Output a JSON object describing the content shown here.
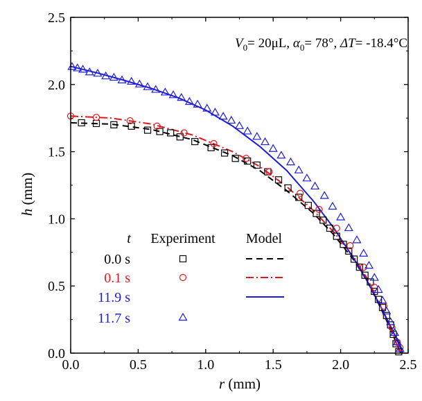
{
  "chart_data": {
    "type": "scatter",
    "title": "",
    "annotation": {
      "V0": "V",
      "V0_sub": "0",
      "V0_value": "= 20μL, ",
      "alpha": "α",
      "alpha_sub": "0",
      "alpha_value": "= 78°, ",
      "dT": "ΔT",
      "dT_value": "= -18.4°C"
    },
    "xlabel": {
      "var": "r",
      "unit": " (mm)"
    },
    "ylabel": {
      "var": "h",
      "unit": "  (mm)"
    },
    "xlim": [
      0,
      2.5
    ],
    "ylim": [
      0,
      2.5
    ],
    "xticks": [
      "0.0",
      "0.5",
      "1.0",
      "1.5",
      "2.0",
      "2.5"
    ],
    "yticks": [
      "0.0",
      "0.5",
      "1.0",
      "1.5",
      "2.0",
      "2.5"
    ],
    "grid": false,
    "legend": {
      "placement": "lower-left",
      "col_t": "t",
      "col_experiment": "Experiment",
      "col_model": "Model",
      "rows": [
        {
          "t": "0.0 s",
          "color": "#000000",
          "marker": "square",
          "line": "dash"
        },
        {
          "t": "0.1 s",
          "color": "#e8141b",
          "marker": "circle",
          "line": "dashdot"
        },
        {
          "t": "11.9 s",
          "color": "#1c1cd9",
          "marker": "none",
          "line": "solid"
        },
        {
          "t": "11.7 s",
          "color": "#1c1cd9",
          "marker": "triangle",
          "line": "none"
        }
      ]
    },
    "experiment_series": [
      {
        "t": "0.0 s",
        "color": "#000000",
        "marker": "square",
        "x": [
          0.08,
          0.19,
          0.32,
          0.45,
          0.57,
          0.66,
          0.74,
          0.81,
          0.92,
          1.04,
          1.14,
          1.22,
          1.31,
          1.38,
          1.46,
          1.54,
          1.61,
          1.69,
          1.76,
          1.82,
          1.87,
          1.92,
          1.97,
          2.02,
          2.06,
          2.1,
          2.14,
          2.18,
          2.22,
          2.25,
          2.28,
          2.31,
          2.34,
          2.37,
          2.39,
          2.41,
          2.43
        ],
        "y": [
          1.715,
          1.71,
          1.7,
          1.69,
          1.66,
          1.65,
          1.64,
          1.61,
          1.575,
          1.53,
          1.49,
          1.45,
          1.43,
          1.4,
          1.35,
          1.29,
          1.23,
          1.16,
          1.1,
          1.04,
          0.99,
          0.93,
          0.87,
          0.81,
          0.76,
          0.7,
          0.64,
          0.58,
          0.53,
          0.46,
          0.4,
          0.34,
          0.28,
          0.21,
          0.14,
          0.07,
          0.01
        ]
      },
      {
        "t": "0.1 s",
        "color": "#e8141b",
        "marker": "circle",
        "x": [
          0.0,
          0.19,
          0.44,
          0.64,
          0.84,
          1.06,
          1.3,
          1.47,
          1.7,
          1.84,
          1.97,
          2.07,
          2.17,
          2.25,
          2.32,
          2.38,
          2.42,
          2.44
        ],
        "y": [
          1.765,
          1.755,
          1.73,
          1.69,
          1.64,
          1.56,
          1.45,
          1.35,
          1.19,
          1.07,
          0.93,
          0.8,
          0.64,
          0.49,
          0.35,
          0.19,
          0.08,
          0.04
        ]
      },
      {
        "t": "11.7 s",
        "color": "#1c1cd9",
        "marker": "triangle",
        "x": [
          0.01,
          0.05,
          0.09,
          0.14,
          0.2,
          0.26,
          0.32,
          0.38,
          0.45,
          0.51,
          0.57,
          0.63,
          0.7,
          0.76,
          0.82,
          0.88,
          0.94,
          1.01,
          1.07,
          1.13,
          1.19,
          1.25,
          1.31,
          1.38,
          1.44,
          1.5,
          1.56,
          1.63,
          1.69,
          1.75,
          1.81,
          1.88,
          1.94,
          2.0,
          2.06,
          2.12,
          2.17,
          2.21,
          2.25,
          2.28,
          2.31,
          2.34,
          2.37,
          2.4,
          2.42,
          2.44
        ],
        "y": [
          2.13,
          2.12,
          2.11,
          2.09,
          2.08,
          2.06,
          2.05,
          2.03,
          2.02,
          2.0,
          1.98,
          1.96,
          1.94,
          1.92,
          1.9,
          1.87,
          1.85,
          1.82,
          1.79,
          1.76,
          1.73,
          1.69,
          1.65,
          1.61,
          1.57,
          1.52,
          1.47,
          1.42,
          1.36,
          1.3,
          1.24,
          1.17,
          1.09,
          1.01,
          0.93,
          0.84,
          0.74,
          0.65,
          0.56,
          0.47,
          0.39,
          0.31,
          0.23,
          0.15,
          0.08,
          0.03
        ]
      }
    ],
    "model_series": [
      {
        "t": "0.0 s",
        "color": "#000000",
        "line": "dash",
        "x": [
          0,
          0.3,
          0.6,
          0.9,
          1.2,
          1.4,
          1.6,
          1.8,
          1.95,
          2.1,
          2.2,
          2.3,
          2.36,
          2.41,
          2.445
        ],
        "y": [
          1.715,
          1.705,
          1.665,
          1.59,
          1.47,
          1.36,
          1.21,
          1.04,
          0.88,
          0.69,
          0.53,
          0.33,
          0.2,
          0.08,
          0.0
        ]
      },
      {
        "t": "0.1 s",
        "color": "#e8141b",
        "line": "dashdot",
        "x": [
          0,
          0.3,
          0.6,
          0.9,
          1.2,
          1.4,
          1.6,
          1.8,
          1.95,
          2.1,
          2.2,
          2.3,
          2.36,
          2.41,
          2.445
        ],
        "y": [
          1.765,
          1.75,
          1.705,
          1.625,
          1.5,
          1.39,
          1.24,
          1.06,
          0.9,
          0.71,
          0.55,
          0.34,
          0.21,
          0.08,
          0.0
        ]
      },
      {
        "t": "11.9 s",
        "color": "#1c1cd9",
        "line": "solid",
        "x": [
          0,
          0.2,
          0.4,
          0.6,
          0.8,
          1.0,
          1.2,
          1.4,
          1.6,
          1.8,
          1.95,
          2.1,
          2.2,
          2.3,
          2.38,
          2.43,
          2.46
        ],
        "y": [
          2.135,
          2.085,
          2.03,
          1.97,
          1.9,
          1.81,
          1.69,
          1.54,
          1.36,
          1.13,
          0.93,
          0.7,
          0.53,
          0.34,
          0.18,
          0.07,
          0.0
        ]
      }
    ]
  }
}
